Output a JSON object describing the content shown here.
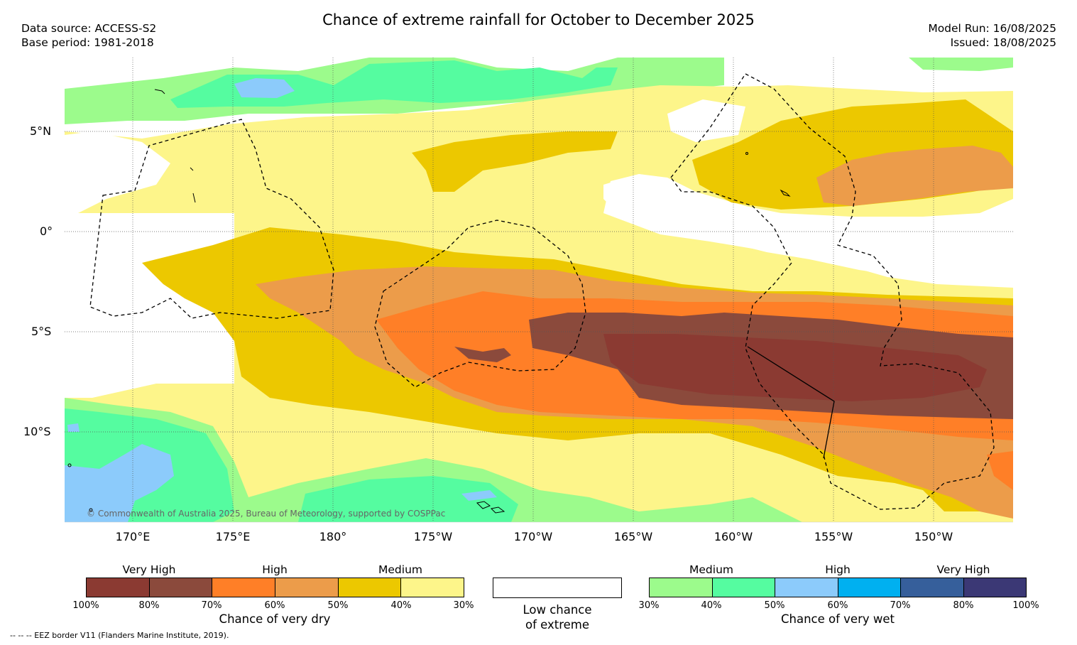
{
  "title": "Chance of extreme rainfall for October to December 2025",
  "data_source": "Data source: ACCESS-S2",
  "base_period": "Base period: 1981-2018",
  "model_run": "Model Run: 16/08/2025",
  "issued": "Issued: 18/08/2025",
  "map": {
    "lat_labels": [
      "5°N",
      "0°",
      "5°S",
      "10°S"
    ],
    "lon_labels": [
      "170°E",
      "175°E",
      "180°",
      "175°W",
      "170°W",
      "165°W",
      "160°W",
      "155°W",
      "150°W"
    ],
    "copyright": "© Commonwealth of Australia 2025, Bureau of Meteorology, supported by COSPPac",
    "colors": {
      "dry_100_80": "#8b3a32",
      "dry_80_70": "#8b4a3c",
      "dry_70_60": "#ff7f27",
      "dry_60_50": "#ec9c4a",
      "dry_50_40": "#ecc800",
      "dry_40_30": "#fdf58a",
      "wet_30_40": "#9cfb8c",
      "wet_40_50": "#55fca0",
      "wet_50_60": "#8ccbfb",
      "wet_60_70": "#00b0f0",
      "wet_70_80": "#365f9b",
      "wet_80_100": "#3b3875",
      "low": "#ffffff"
    }
  },
  "legend": {
    "dry": {
      "categories": [
        "Very High",
        "High",
        "Medium"
      ],
      "ticks": [
        "100%",
        "80%",
        "70%",
        "60%",
        "50%",
        "40%",
        "30%"
      ],
      "colors": [
        "#8b3a32",
        "#8b4a3c",
        "#ff7f27",
        "#ec9c4a",
        "#ecc800",
        "#fdf58a"
      ],
      "title": "Chance of very dry"
    },
    "low": {
      "line1": "Low chance",
      "line2": "of extreme"
    },
    "wet": {
      "categories": [
        "Medium",
        "High",
        "Very High"
      ],
      "ticks": [
        "30%",
        "40%",
        "50%",
        "60%",
        "70%",
        "80%",
        "100%"
      ],
      "colors": [
        "#9cfb8c",
        "#55fca0",
        "#8ccbfb",
        "#00b0f0",
        "#365f9b",
        "#3b3875"
      ],
      "title": "Chance of very wet"
    }
  },
  "eez_note": "--  --  -- EEZ border V11 (Flanders Marine Institute, 2019)."
}
